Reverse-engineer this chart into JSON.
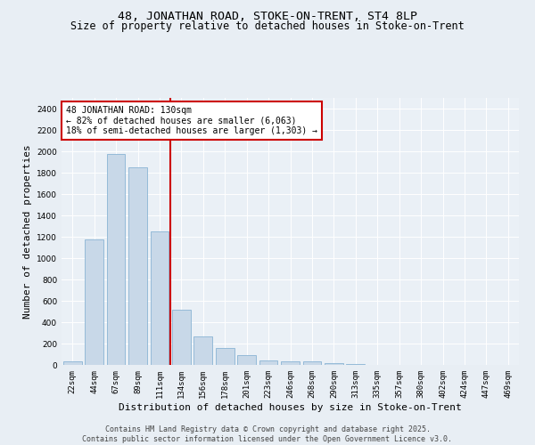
{
  "title_line1": "48, JONATHAN ROAD, STOKE-ON-TRENT, ST4 8LP",
  "title_line2": "Size of property relative to detached houses in Stoke-on-Trent",
  "xlabel": "Distribution of detached houses by size in Stoke-on-Trent",
  "ylabel": "Number of detached properties",
  "bar_color": "#c8d8e8",
  "bar_edge_color": "#8ab4d4",
  "categories": [
    "22sqm",
    "44sqm",
    "67sqm",
    "89sqm",
    "111sqm",
    "134sqm",
    "156sqm",
    "178sqm",
    "201sqm",
    "223sqm",
    "246sqm",
    "268sqm",
    "290sqm",
    "313sqm",
    "335sqm",
    "357sqm",
    "380sqm",
    "402sqm",
    "424sqm",
    "447sqm",
    "469sqm"
  ],
  "values": [
    30,
    1175,
    1975,
    1850,
    1250,
    520,
    270,
    160,
    95,
    45,
    35,
    30,
    15,
    5,
    2,
    1,
    0,
    0,
    0,
    0,
    0
  ],
  "vline_color": "#cc0000",
  "annotation_text": "48 JONATHAN ROAD: 130sqm\n← 82% of detached houses are smaller (6,063)\n18% of semi-detached houses are larger (1,303) →",
  "annotation_box_color": "#ffffff",
  "annotation_box_edge_color": "#cc0000",
  "ylim": [
    0,
    2500
  ],
  "yticks": [
    0,
    200,
    400,
    600,
    800,
    1000,
    1200,
    1400,
    1600,
    1800,
    2000,
    2200,
    2400
  ],
  "bg_color": "#e8eef4",
  "plot_bg_color": "#eaf0f6",
  "footer_line1": "Contains HM Land Registry data © Crown copyright and database right 2025.",
  "footer_line2": "Contains public sector information licensed under the Open Government Licence v3.0.",
  "title_fontsize": 9.5,
  "subtitle_fontsize": 8.5,
  "axis_label_fontsize": 8,
  "tick_fontsize": 6.5,
  "annotation_fontsize": 7,
  "footer_fontsize": 6
}
